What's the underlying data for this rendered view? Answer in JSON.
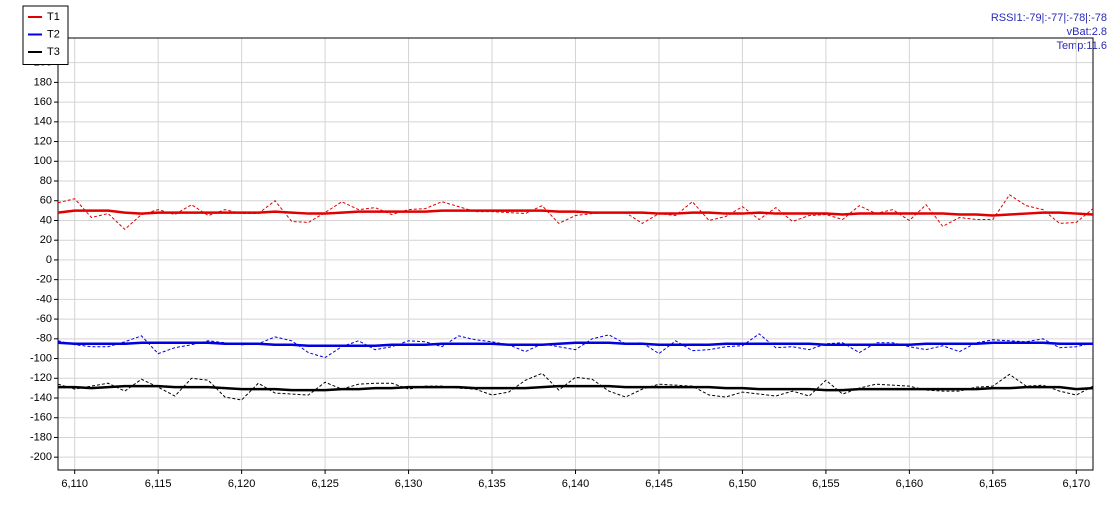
{
  "chart_data": {
    "type": "line",
    "annotations": [
      "RSSI1:-79|:-77|:-78|:-78",
      "vBat:2.8",
      "Temp:11.6"
    ],
    "x": [
      6109,
      6110,
      6111,
      6112,
      6113,
      6114,
      6115,
      6116,
      6117,
      6118,
      6119,
      6120,
      6121,
      6122,
      6123,
      6124,
      6125,
      6126,
      6127,
      6128,
      6129,
      6130,
      6131,
      6132,
      6133,
      6134,
      6135,
      6136,
      6137,
      6138,
      6139,
      6140,
      6141,
      6142,
      6143,
      6144,
      6145,
      6146,
      6147,
      6148,
      6149,
      6150,
      6151,
      6152,
      6153,
      6154,
      6155,
      6156,
      6157,
      6158,
      6159,
      6160,
      6161,
      6162,
      6163,
      6164,
      6165,
      6166,
      6167,
      6168,
      6169,
      6170,
      6171
    ],
    "series": [
      {
        "name": "T1",
        "color": "#e00000",
        "style": "solid",
        "values": [
          48,
          50,
          50,
          50,
          48,
          47,
          48,
          48,
          48,
          48,
          48,
          48,
          48,
          49,
          48,
          47,
          47,
          48,
          49,
          49,
          49,
          49,
          49,
          50,
          50,
          50,
          50,
          50,
          50,
          50,
          49,
          49,
          48,
          48,
          48,
          48,
          47,
          47,
          48,
          48,
          47,
          47,
          48,
          47,
          47,
          47,
          47,
          46,
          47,
          47,
          47,
          47,
          47,
          47,
          46,
          46,
          45,
          46,
          47,
          48,
          48,
          47,
          46
        ]
      },
      {
        "color": "#e00000",
        "style": "dashed",
        "values": [
          58,
          62,
          43,
          47,
          31,
          46,
          51,
          46,
          56,
          45,
          51,
          47,
          47,
          60,
          39,
          38,
          48,
          59,
          51,
          53,
          46,
          51,
          52,
          59,
          54,
          49,
          49,
          48,
          47,
          55,
          37,
          45,
          47,
          48,
          48,
          37,
          47,
          45,
          59,
          40,
          44,
          54,
          41,
          53,
          39,
          45,
          46,
          41,
          55,
          47,
          51,
          40,
          56,
          34,
          43,
          41,
          41,
          66,
          55,
          51,
          37,
          38,
          52
        ]
      },
      {
        "name": "T2",
        "color": "#0000e0",
        "style": "solid",
        "values": [
          -84,
          -85,
          -85,
          -85,
          -85,
          -84,
          -84,
          -84,
          -84,
          -84,
          -85,
          -85,
          -85,
          -86,
          -86,
          -87,
          -87,
          -87,
          -87,
          -87,
          -86,
          -86,
          -86,
          -85,
          -85,
          -85,
          -85,
          -86,
          -86,
          -86,
          -85,
          -84,
          -84,
          -84,
          -85,
          -85,
          -86,
          -86,
          -86,
          -86,
          -85,
          -85,
          -85,
          -85,
          -85,
          -85,
          -86,
          -86,
          -86,
          -86,
          -86,
          -86,
          -85,
          -85,
          -85,
          -85,
          -84,
          -84,
          -84,
          -84,
          -85,
          -85,
          -85
        ]
      },
      {
        "color": "#0000e0",
        "style": "dashed",
        "values": [
          -82,
          -86,
          -88,
          -88,
          -83,
          -77,
          -95,
          -89,
          -86,
          -82,
          -84,
          -86,
          -85,
          -78,
          -82,
          -94,
          -99,
          -88,
          -82,
          -91,
          -88,
          -82,
          -83,
          -88,
          -77,
          -81,
          -83,
          -86,
          -93,
          -85,
          -88,
          -91,
          -80,
          -76,
          -85,
          -84,
          -95,
          -82,
          -92,
          -91,
          -88,
          -87,
          -75,
          -89,
          -88,
          -91,
          -85,
          -84,
          -94,
          -84,
          -84,
          -88,
          -91,
          -87,
          -93,
          -84,
          -81,
          -82,
          -83,
          -80,
          -89,
          -88,
          -84
        ]
      },
      {
        "name": "T3",
        "color": "#000000",
        "style": "solid",
        "values": [
          -129,
          -129,
          -130,
          -129,
          -128,
          -128,
          -128,
          -129,
          -129,
          -129,
          -130,
          -131,
          -131,
          -131,
          -132,
          -132,
          -132,
          -131,
          -131,
          -130,
          -130,
          -129,
          -129,
          -129,
          -129,
          -130,
          -130,
          -130,
          -130,
          -129,
          -128,
          -128,
          -128,
          -128,
          -129,
          -129,
          -129,
          -129,
          -129,
          -129,
          -130,
          -130,
          -131,
          -131,
          -131,
          -131,
          -132,
          -132,
          -131,
          -131,
          -131,
          -131,
          -131,
          -131,
          -131,
          -131,
          -130,
          -130,
          -129,
          -129,
          -129,
          -131,
          -130
        ]
      },
      {
        "color": "#000000",
        "style": "dashed",
        "values": [
          -126,
          -131,
          -128,
          -125,
          -133,
          -121,
          -129,
          -138,
          -120,
          -122,
          -139,
          -142,
          -125,
          -135,
          -136,
          -137,
          -124,
          -131,
          -126,
          -125,
          -125,
          -131,
          -128,
          -128,
          -130,
          -131,
          -137,
          -134,
          -122,
          -115,
          -132,
          -119,
          -121,
          -133,
          -139,
          -131,
          -126,
          -127,
          -128,
          -137,
          -139,
          -134,
          -136,
          -138,
          -133,
          -138,
          -122,
          -136,
          -130,
          -126,
          -127,
          -128,
          -132,
          -133,
          -133,
          -129,
          -128,
          -116,
          -128,
          -127,
          -133,
          -137,
          -128
        ]
      }
    ],
    "xlim": [
      6109,
      6171
    ],
    "xticks": [
      {
        "value": 6110,
        "label": "6,110"
      },
      {
        "value": 6115,
        "label": "6,115"
      },
      {
        "value": 6120,
        "label": "6,120"
      },
      {
        "value": 6125,
        "label": "6,125"
      },
      {
        "value": 6130,
        "label": "6,130"
      },
      {
        "value": 6135,
        "label": "6,135"
      },
      {
        "value": 6140,
        "label": "6,140"
      },
      {
        "value": 6145,
        "label": "6,145"
      },
      {
        "value": 6150,
        "label": "6,150"
      },
      {
        "value": 6155,
        "label": "6,155"
      },
      {
        "value": 6160,
        "label": "6,160"
      },
      {
        "value": 6165,
        "label": "6,165"
      },
      {
        "value": 6170,
        "label": "6,170"
      }
    ],
    "ylim": [
      -213,
      225
    ],
    "yticks": [
      -200,
      -180,
      -160,
      -140,
      -120,
      -100,
      -80,
      -60,
      -40,
      -20,
      0,
      20,
      40,
      60,
      80,
      100,
      120,
      140,
      160,
      180,
      200
    ],
    "grid": true,
    "legend": "top-left"
  }
}
